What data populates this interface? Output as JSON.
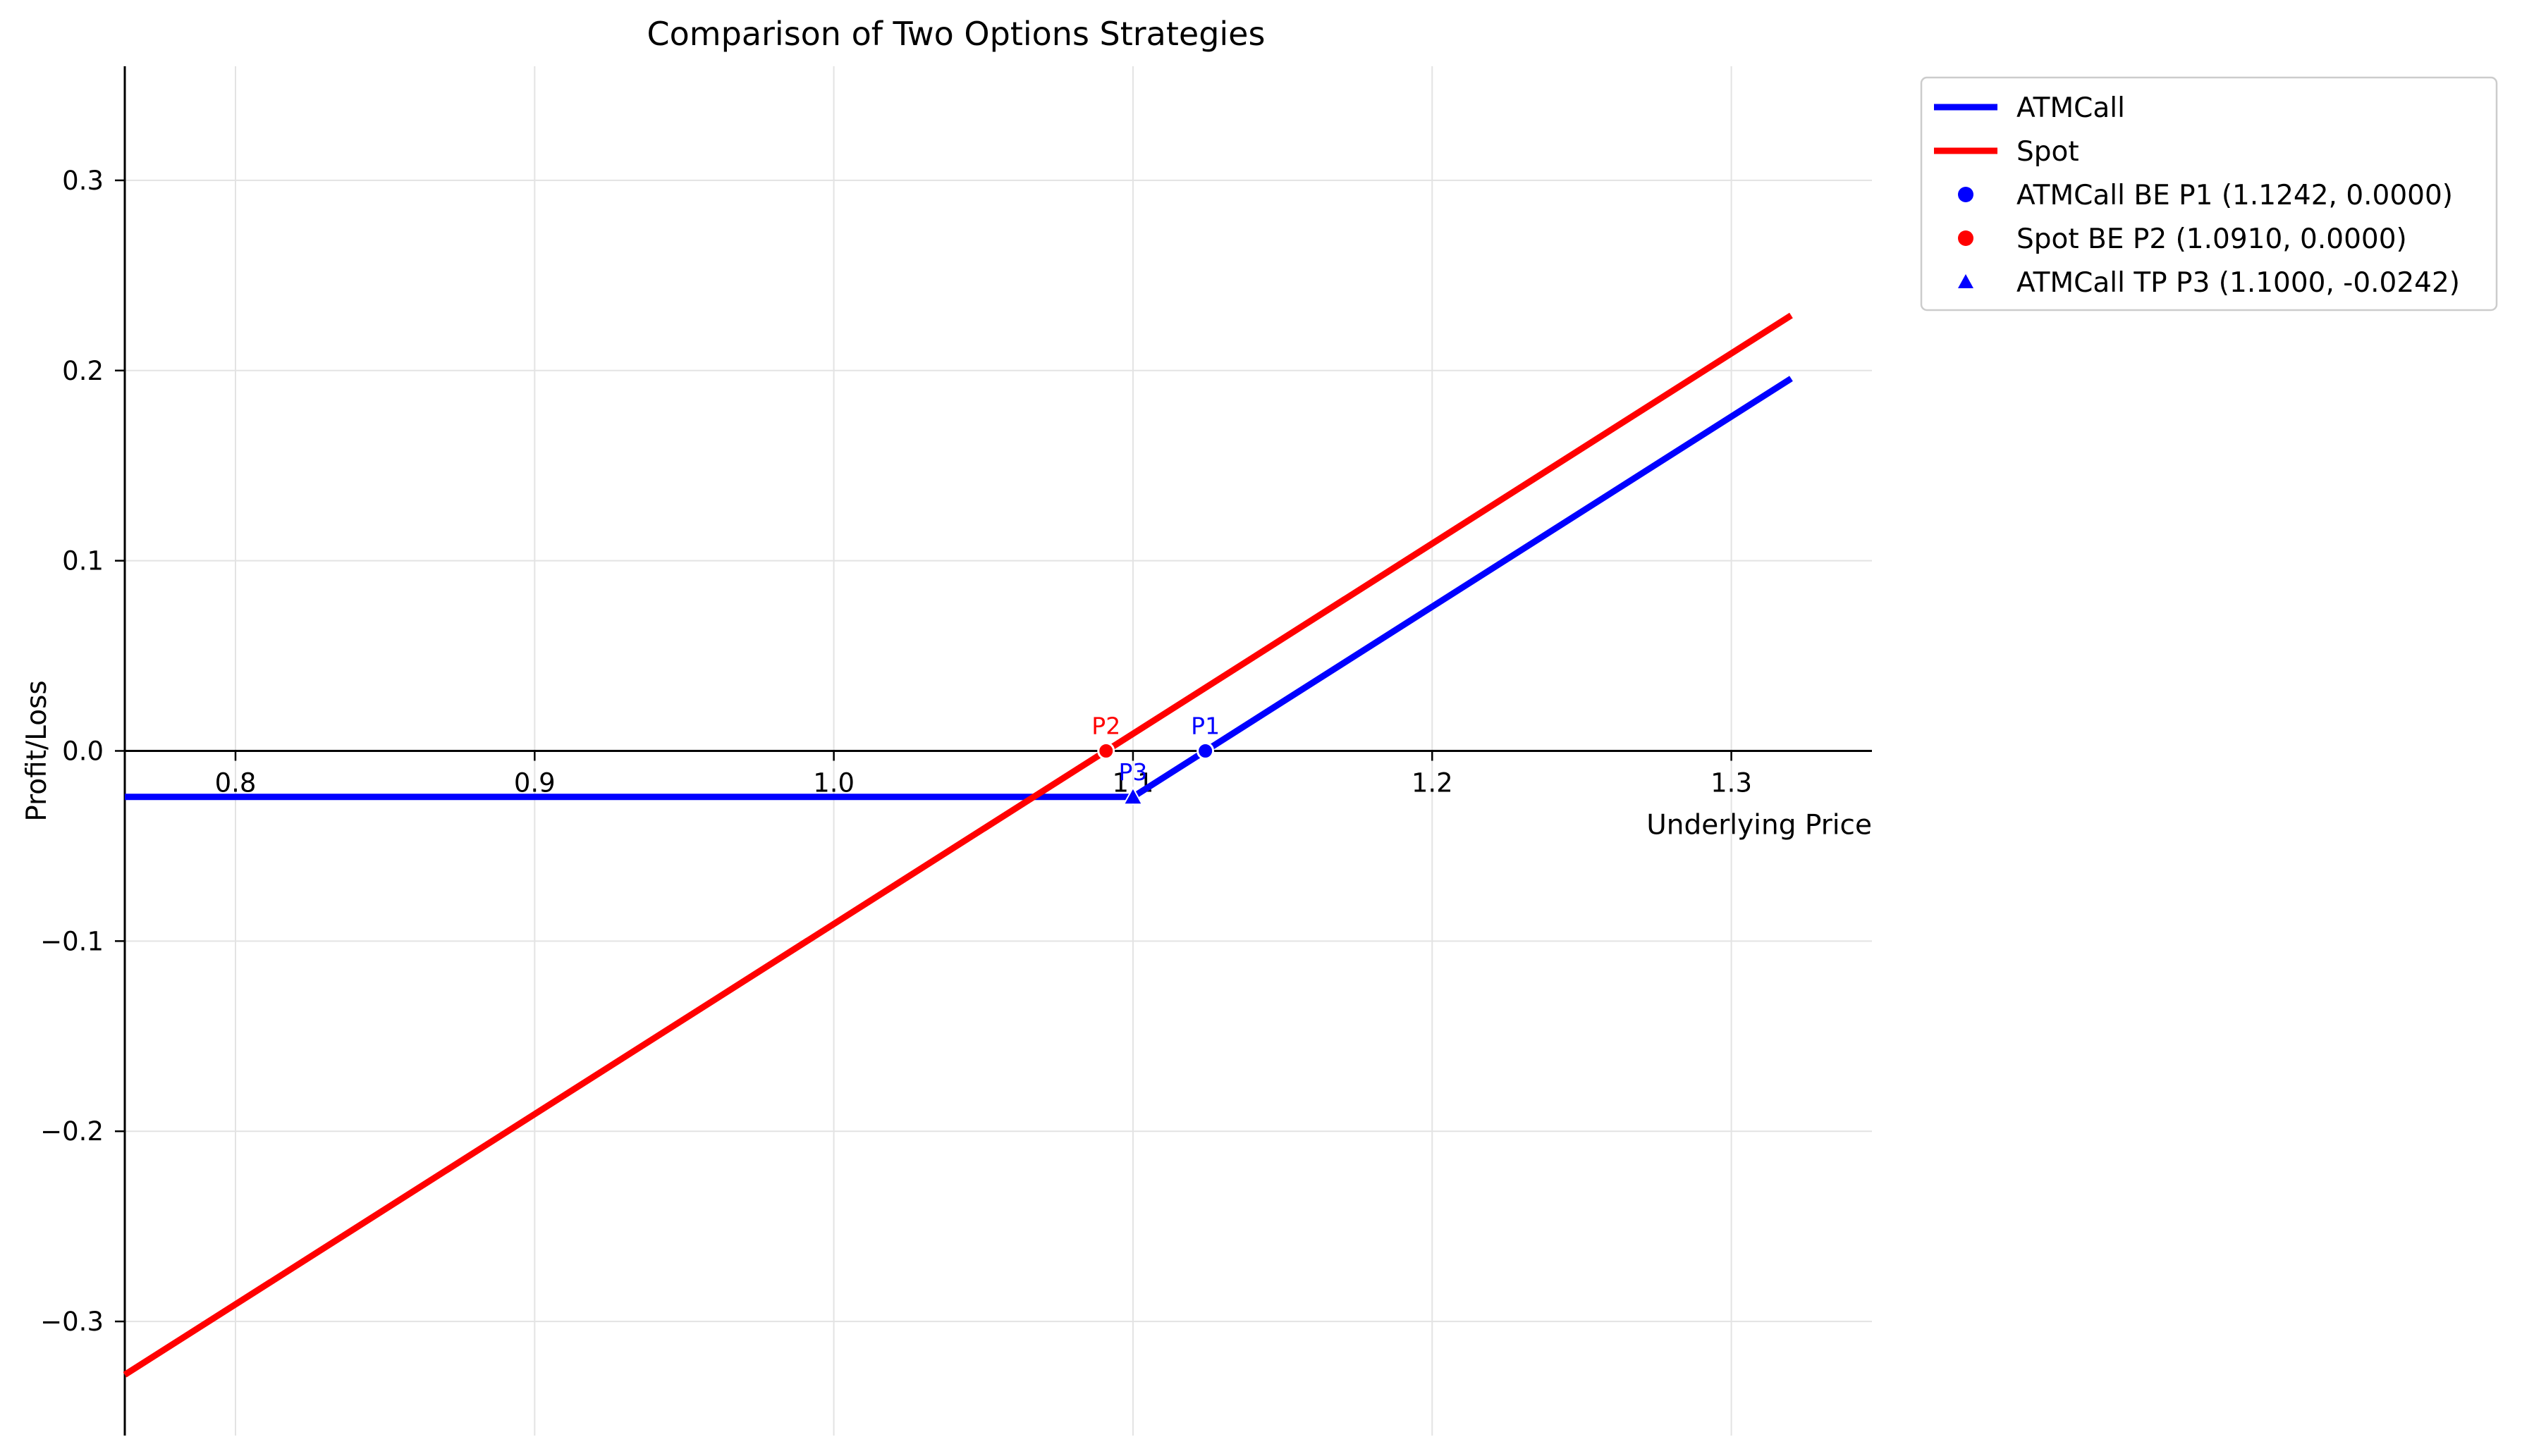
{
  "chart_data": {
    "type": "line",
    "title": "Comparison of Two Options Strategies",
    "xlabel": "Underlying Price",
    "ylabel": "Profit/Loss",
    "xlim": [
      0.763,
      1.347
    ],
    "ylim": [
      -0.36,
      0.36
    ],
    "xticks": [
      0.8,
      0.9,
      1.0,
      1.1,
      1.2,
      1.3
    ],
    "xtick_labels": [
      "0.8",
      "0.9",
      "1.0",
      "1.1",
      "1.2",
      "1.3"
    ],
    "yticks": [
      0.3,
      0.2,
      0.1,
      0.0,
      -0.1,
      -0.2,
      -0.3
    ],
    "ytick_labels": [
      "0.3",
      "0.2",
      "0.1",
      "0.0",
      "−0.1",
      "−0.2",
      "−0.3"
    ],
    "grid": true,
    "legend_position": "outside-top-right",
    "series": [
      {
        "name": "ATMCall",
        "color": "#0000ff",
        "x": [
          0.763,
          1.1,
          1.32
        ],
        "y": [
          -0.0242,
          -0.0242,
          0.1958
        ]
      },
      {
        "name": "Spot",
        "color": "#ff0000",
        "x": [
          0.763,
          1.32
        ],
        "y": [
          -0.328,
          0.229
        ]
      }
    ],
    "points": [
      {
        "legend": "ATMCall BE P1 (1.1242, 0.0000)",
        "label": "P1",
        "x": 1.1242,
        "y": 0.0,
        "marker": "circle",
        "color": "#0000ff"
      },
      {
        "legend": "Spot BE P2 (1.0910, 0.0000)",
        "label": "P2",
        "x": 1.091,
        "y": 0.0,
        "marker": "circle",
        "color": "#ff0000"
      },
      {
        "legend": "ATMCall TP P3 (1.1000, -0.0242)",
        "label": "P3",
        "x": 1.1,
        "y": -0.0242,
        "marker": "triangle",
        "color": "#0000ff"
      }
    ]
  }
}
